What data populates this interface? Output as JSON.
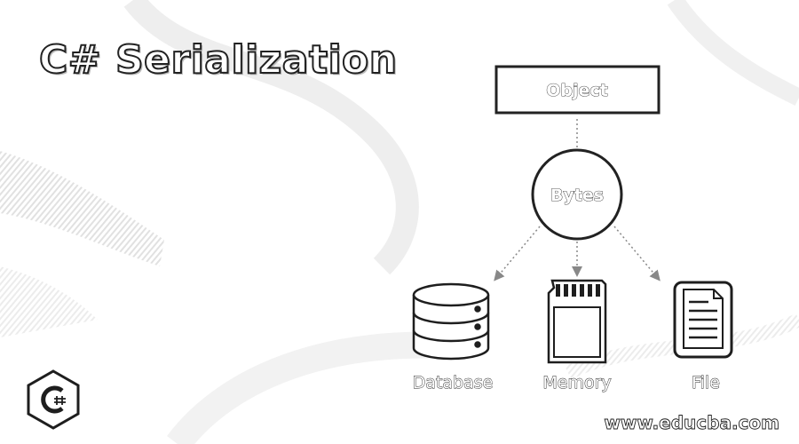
{
  "title": "C# Serialization",
  "diagram": {
    "source": {
      "label": "Object"
    },
    "hub": {
      "label": "Bytes"
    },
    "targets": [
      {
        "label": "Database",
        "icon": "database-icon"
      },
      {
        "label": "Memory",
        "icon": "memory-card-icon"
      },
      {
        "label": "File",
        "icon": "file-document-icon"
      }
    ]
  },
  "watermark": "www.educba.com",
  "colors": {
    "ink": "#1e1e1e",
    "background": "#ffffff"
  }
}
